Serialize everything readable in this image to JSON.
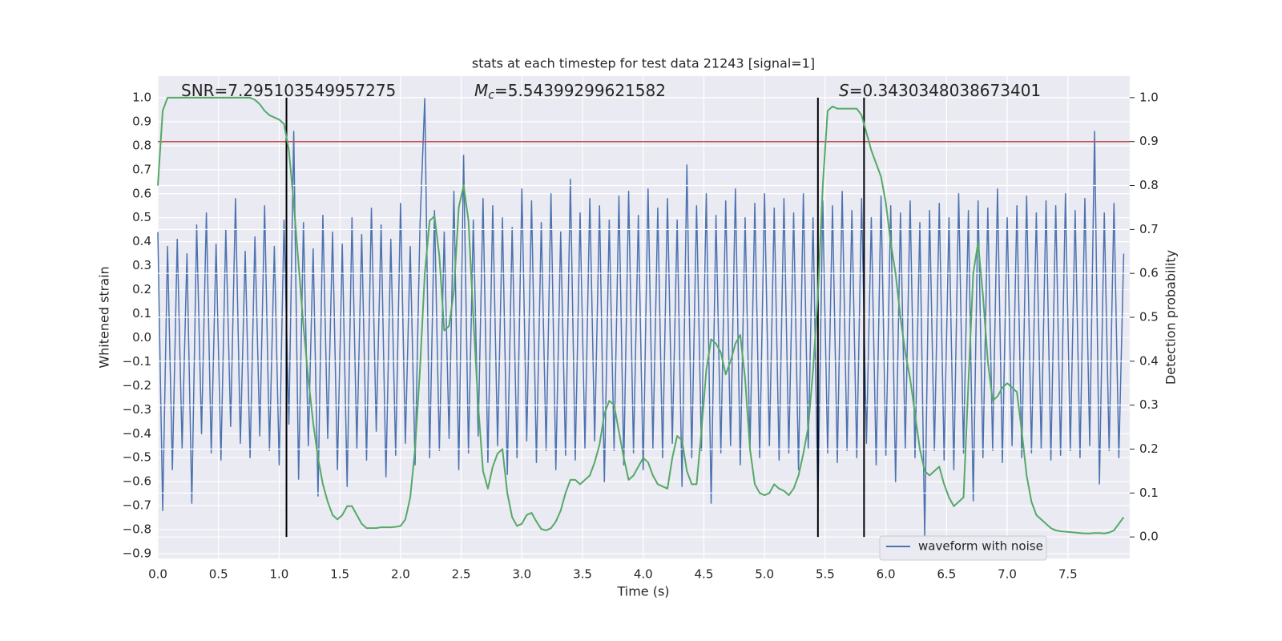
{
  "chart_data": {
    "type": "line",
    "title": "stats at each timestep for test data 21243 [signal=1]",
    "xlabel": "Time (s)",
    "ylabel": "Whitened strain",
    "y2label": "Detection probability",
    "annotations": [
      {
        "text": "SNR=7.295103549957275"
      },
      {
        "symbol": "M",
        "subscript": "c",
        "text": "=5.54399299621582"
      },
      {
        "symbol": "S",
        "text": "=0.3430348038673401"
      }
    ],
    "xlim": [
      0,
      8.01
    ],
    "ylim": [
      -0.92,
      1.09
    ],
    "y2lim": [
      -0.049,
      1.049
    ],
    "xticks": [
      {
        "value": 0,
        "label": "0.0"
      },
      0.5,
      {
        "value": 1,
        "label": "1.0"
      },
      1.5,
      {
        "value": 2,
        "label": "2.0"
      },
      2.5,
      {
        "value": 3,
        "label": "3.0"
      },
      3.5,
      {
        "value": 4,
        "label": "4.0"
      },
      4.5,
      {
        "value": 5,
        "label": "5.0"
      },
      5.5,
      {
        "value": 6,
        "label": "6.0"
      },
      6.5,
      {
        "value": 7,
        "label": "7.0"
      },
      7.5
    ],
    "yticks": [
      {
        "value": -0.9,
        "label": "−0.9"
      },
      {
        "value": -0.8,
        "label": "−0.8"
      },
      {
        "value": -0.7,
        "label": "−0.7"
      },
      {
        "value": -0.6,
        "label": "−0.6"
      },
      {
        "value": -0.5,
        "label": "−0.5"
      },
      {
        "value": -0.4,
        "label": "−0.4"
      },
      {
        "value": -0.3,
        "label": "−0.3"
      },
      {
        "value": -0.2,
        "label": "−0.2"
      },
      {
        "value": -0.1,
        "label": "−0.1"
      },
      {
        "value": 0,
        "label": "0.0"
      },
      0.1,
      0.2,
      0.3,
      0.4,
      0.5,
      0.6,
      0.7,
      0.8,
      0.9,
      {
        "value": 1,
        "label": "1.0"
      }
    ],
    "y2ticks": [
      {
        "value": 0,
        "label": "0.0"
      },
      0.1,
      0.2,
      0.3,
      0.4,
      0.5,
      0.6,
      0.7,
      0.8,
      0.9,
      {
        "value": 1,
        "label": "1.0"
      }
    ],
    "grid": true,
    "legend": "lower right",
    "threshold": {
      "value": 0.9,
      "color": "#c44e52"
    },
    "vlines": [
      1.06,
      5.44,
      5.82
    ],
    "vline_color": "#000000",
    "x": [
      0,
      0.04,
      0.08,
      0.12,
      0.16,
      0.2,
      0.24,
      0.28,
      0.32,
      0.36,
      0.4,
      0.44,
      0.48,
      0.52,
      0.56,
      0.6,
      0.64,
      0.68,
      0.72,
      0.76,
      0.8,
      0.84,
      0.88,
      0.92,
      0.96,
      1,
      1.04,
      1.08,
      1.12,
      1.16,
      1.2,
      1.24,
      1.28,
      1.32,
      1.36,
      1.4,
      1.44,
      1.48,
      1.52,
      1.56,
      1.6,
      1.64,
      1.68,
      1.72,
      1.76,
      1.8,
      1.84,
      1.88,
      1.92,
      1.96,
      2,
      2.04,
      2.08,
      2.12,
      2.16,
      2.2,
      2.24,
      2.28,
      2.32,
      2.36,
      2.4,
      2.44,
      2.48,
      2.52,
      2.56,
      2.6,
      2.64,
      2.68,
      2.72,
      2.76,
      2.8,
      2.84,
      2.88,
      2.92,
      2.96,
      3,
      3.04,
      3.08,
      3.12,
      3.16,
      3.2,
      3.24,
      3.28,
      3.32,
      3.36,
      3.4,
      3.44,
      3.48,
      3.52,
      3.56,
      3.6,
      3.64,
      3.68,
      3.72,
      3.76,
      3.8,
      3.84,
      3.88,
      3.92,
      3.96,
      4,
      4.04,
      4.08,
      4.12,
      4.16,
      4.2,
      4.24,
      4.28,
      4.32,
      4.36,
      4.4,
      4.44,
      4.48,
      4.52,
      4.56,
      4.6,
      4.64,
      4.68,
      4.72,
      4.76,
      4.8,
      4.84,
      4.88,
      4.92,
      4.96,
      5,
      5.04,
      5.08,
      5.12,
      5.16,
      5.2,
      5.24,
      5.28,
      5.32,
      5.36,
      5.4,
      5.44,
      5.48,
      5.52,
      5.56,
      5.6,
      5.64,
      5.68,
      5.72,
      5.76,
      5.8,
      5.84,
      5.88,
      5.92,
      5.96,
      6,
      6.04,
      6.08,
      6.12,
      6.16,
      6.2,
      6.24,
      6.28,
      6.32,
      6.36,
      6.4,
      6.44,
      6.48,
      6.52,
      6.56,
      6.6,
      6.64,
      6.68,
      6.72,
      6.76,
      6.8,
      6.84,
      6.88,
      6.92,
      6.96,
      7,
      7.04,
      7.08,
      7.12,
      7.16,
      7.2,
      7.24,
      7.28,
      7.32,
      7.36,
      7.4,
      7.44,
      7.48,
      7.52,
      7.56,
      7.6,
      7.64,
      7.68,
      7.72,
      7.76,
      7.8,
      7.84,
      7.88,
      7.92,
      7.96
    ],
    "series": [
      {
        "name": "waveform with noise",
        "color": "#4c72b0",
        "values": [
          0.44,
          -0.72,
          0.38,
          -0.55,
          0.41,
          -0.46,
          0.35,
          -0.69,
          0.47,
          -0.4,
          0.52,
          -0.48,
          0.39,
          -0.51,
          0.45,
          -0.37,
          0.58,
          -0.44,
          0.36,
          -0.5,
          0.42,
          -0.41,
          0.55,
          -0.47,
          0.38,
          -0.53,
          0.49,
          -0.36,
          0.86,
          -0.59,
          0.48,
          -0.45,
          0.37,
          -0.66,
          0.51,
          -0.42,
          0.44,
          -0.55,
          0.39,
          -0.62,
          0.5,
          -0.46,
          0.43,
          -0.51,
          0.54,
          -0.39,
          0.47,
          -0.58,
          0.41,
          -0.49,
          0.56,
          -0.44,
          0.38,
          -0.53,
          0.46,
          1.0,
          -0.5,
          0.53,
          -0.47,
          0.44,
          -0.42,
          0.61,
          -0.55,
          0.76,
          -0.48,
          0.49,
          -0.41,
          0.58,
          -0.52,
          0.55,
          -0.45,
          0.5,
          -0.57,
          0.46,
          -0.5,
          0.62,
          -0.43,
          0.57,
          -0.52,
          0.48,
          -0.47,
          0.6,
          -0.55,
          0.44,
          -0.49,
          0.66,
          -0.51,
          0.52,
          -0.46,
          0.58,
          -0.43,
          0.55,
          -0.6,
          0.49,
          -0.47,
          0.59,
          -0.53,
          0.61,
          -0.48,
          0.51,
          -0.55,
          0.62,
          -0.46,
          0.54,
          -0.5,
          0.58,
          -0.44,
          0.49,
          -0.62,
          0.72,
          -0.5,
          0.55,
          -0.47,
          0.6,
          -0.69,
          0.51,
          -0.48,
          0.57,
          -0.45,
          0.62,
          -0.53,
          0.5,
          -0.47,
          0.56,
          -0.5,
          0.6,
          -0.45,
          0.54,
          -0.51,
          0.58,
          -0.48,
          0.52,
          -0.55,
          0.6,
          -0.46,
          0.5,
          -0.69,
          0.57,
          -0.48,
          0.55,
          -0.52,
          0.61,
          -0.47,
          0.53,
          -0.5,
          0.58,
          -0.44,
          0.5,
          -0.53,
          0.59,
          -0.49,
          0.55,
          -0.6,
          0.52,
          -0.46,
          0.57,
          -0.5,
          0.48,
          -0.83,
          0.53,
          -0.47,
          0.56,
          -0.51,
          0.5,
          -0.55,
          0.6,
          -0.48,
          0.53,
          -0.68,
          0.57,
          -0.5,
          0.54,
          -0.47,
          0.62,
          -0.52,
          0.5,
          -0.45,
          0.55,
          -0.5,
          0.59,
          -0.48,
          0.52,
          -0.46,
          0.57,
          -0.51,
          0.55,
          -0.49,
          0.6,
          -0.47,
          0.53,
          -0.5,
          0.58,
          -0.45,
          0.86,
          -0.61,
          0.52,
          -0.47,
          0.56,
          -0.5,
          0.35
        ]
      },
      {
        "color": "#55a868",
        "axis": "y2",
        "values": [
          0.8,
          0.97,
          1.0,
          1.0,
          1.0,
          1.0,
          1.0,
          1.0,
          1.0,
          1.0,
          1.0,
          1.0,
          1.0,
          1.0,
          1.0,
          1.0,
          1.0,
          1.0,
          1.0,
          1.0,
          0.995,
          0.985,
          0.97,
          0.96,
          0.955,
          0.95,
          0.94,
          0.88,
          0.76,
          0.62,
          0.48,
          0.36,
          0.26,
          0.18,
          0.12,
          0.08,
          0.05,
          0.04,
          0.05,
          0.07,
          0.07,
          0.05,
          0.03,
          0.02,
          0.02,
          0.02,
          0.022,
          0.022,
          0.022,
          0.023,
          0.025,
          0.04,
          0.09,
          0.2,
          0.38,
          0.6,
          0.72,
          0.73,
          0.64,
          0.47,
          0.48,
          0.56,
          0.75,
          0.8,
          0.72,
          0.5,
          0.3,
          0.15,
          0.11,
          0.16,
          0.19,
          0.2,
          0.1,
          0.045,
          0.025,
          0.03,
          0.05,
          0.055,
          0.035,
          0.018,
          0.015,
          0.02,
          0.035,
          0.06,
          0.1,
          0.13,
          0.13,
          0.12,
          0.13,
          0.14,
          0.17,
          0.21,
          0.28,
          0.31,
          0.3,
          0.24,
          0.18,
          0.13,
          0.14,
          0.16,
          0.18,
          0.17,
          0.14,
          0.12,
          0.115,
          0.11,
          0.18,
          0.23,
          0.22,
          0.15,
          0.12,
          0.12,
          0.24,
          0.38,
          0.45,
          0.44,
          0.42,
          0.37,
          0.4,
          0.44,
          0.46,
          0.36,
          0.2,
          0.12,
          0.1,
          0.095,
          0.1,
          0.12,
          0.11,
          0.105,
          0.095,
          0.11,
          0.14,
          0.19,
          0.25,
          0.38,
          0.55,
          0.8,
          0.97,
          0.98,
          0.975,
          0.975,
          0.975,
          0.975,
          0.975,
          0.96,
          0.92,
          0.88,
          0.85,
          0.82,
          0.76,
          0.67,
          0.6,
          0.5,
          0.42,
          0.36,
          0.28,
          0.2,
          0.15,
          0.14,
          0.15,
          0.16,
          0.12,
          0.09,
          0.07,
          0.08,
          0.09,
          0.35,
          0.6,
          0.67,
          0.55,
          0.4,
          0.31,
          0.32,
          0.34,
          0.35,
          0.34,
          0.33,
          0.24,
          0.14,
          0.08,
          0.05,
          0.04,
          0.03,
          0.02,
          0.015,
          0.013,
          0.012,
          0.011,
          0.01,
          0.009,
          0.008,
          0.008,
          0.009,
          0.009,
          0.008,
          0.01,
          0.015,
          0.03,
          0.045
        ]
      }
    ]
  }
}
